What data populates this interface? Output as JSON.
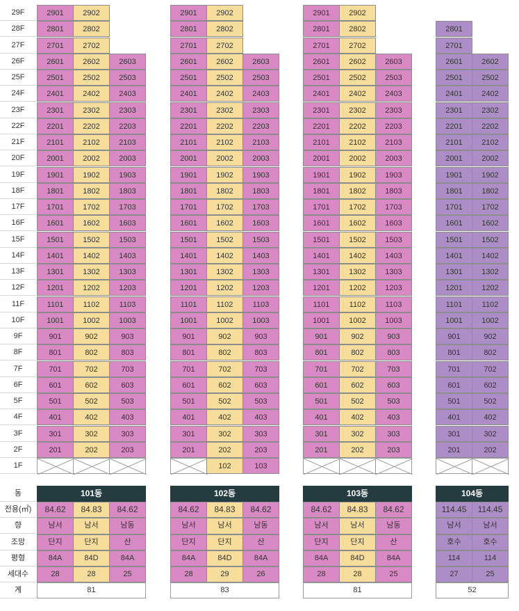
{
  "colors": {
    "pink": "#d98ac4",
    "yellow": "#f6dd9c",
    "purple": "#ad8dc6",
    "header": "#243b40"
  },
  "floors": [
    "29F",
    "28F",
    "27F",
    "26F",
    "25F",
    "24F",
    "23F",
    "22F",
    "21F",
    "20F",
    "19F",
    "18F",
    "17F",
    "16F",
    "15F",
    "14F",
    "13F",
    "12F",
    "11F",
    "10F",
    "9F",
    "8F",
    "7F",
    "6F",
    "5F",
    "4F",
    "3F",
    "2F",
    "1F"
  ],
  "row_labels": [
    "동",
    "전용(㎡)",
    "향",
    "조망",
    "평형",
    "세대수",
    "계"
  ],
  "buildings": [
    {
      "name": "101동",
      "total": "81",
      "lines": [
        {
          "color": "pink",
          "area": "84.62",
          "facing": "남서",
          "view": "단지",
          "type": "84A",
          "count": "28",
          "units": [
            "2901",
            "2801",
            "2701",
            "2601",
            "2501",
            "2401",
            "2301",
            "2201",
            "2101",
            "2001",
            "1901",
            "1801",
            "1701",
            "1601",
            "1501",
            "1401",
            "1301",
            "1201",
            "1101",
            "1001",
            "901",
            "801",
            "701",
            "601",
            "501",
            "401",
            "301",
            "201",
            ""
          ]
        },
        {
          "color": "yellow",
          "area": "84.83",
          "facing": "남서",
          "view": "단지",
          "type": "84D",
          "count": "28",
          "units": [
            "2902",
            "2802",
            "2702",
            "2602",
            "2502",
            "2402",
            "2302",
            "2202",
            "2102",
            "2002",
            "1902",
            "1802",
            "1702",
            "1602",
            "1502",
            "1402",
            "1302",
            "1202",
            "1102",
            "1002",
            "902",
            "802",
            "702",
            "602",
            "502",
            "402",
            "302",
            "202",
            ""
          ]
        },
        {
          "color": "pink",
          "area": "84.62",
          "facing": "남동",
          "view": "산",
          "type": "84A",
          "count": "25",
          "units": [
            null,
            null,
            null,
            "2603",
            "2503",
            "2403",
            "2303",
            "2203",
            "2103",
            "2003",
            "1903",
            "1803",
            "1703",
            "1603",
            "1503",
            "1403",
            "1303",
            "1203",
            "1103",
            "1003",
            "903",
            "803",
            "703",
            "603",
            "503",
            "403",
            "303",
            "203",
            ""
          ]
        }
      ]
    },
    {
      "name": "102동",
      "total": "83",
      "lines": [
        {
          "color": "pink",
          "area": "84.62",
          "facing": "남서",
          "view": "단지",
          "type": "84A",
          "count": "28",
          "units": [
            "2901",
            "2801",
            "2701",
            "2601",
            "2501",
            "2401",
            "2301",
            "2201",
            "2101",
            "2001",
            "1901",
            "1801",
            "1701",
            "1601",
            "1501",
            "1401",
            "1301",
            "1201",
            "1101",
            "1001",
            "901",
            "801",
            "701",
            "601",
            "501",
            "401",
            "301",
            "201",
            ""
          ]
        },
        {
          "color": "yellow",
          "area": "84.83",
          "facing": "남서",
          "view": "단지",
          "type": "84D",
          "count": "29",
          "units": [
            "2902",
            "2802",
            "2702",
            "2602",
            "2502",
            "2402",
            "2302",
            "2202",
            "2102",
            "2002",
            "1902",
            "1802",
            "1702",
            "1602",
            "1502",
            "1402",
            "1302",
            "1202",
            "1102",
            "1002",
            "902",
            "802",
            "702",
            "602",
            "502",
            "402",
            "302",
            "202",
            "102"
          ]
        },
        {
          "color": "pink",
          "area": "84.62",
          "facing": "남동",
          "view": "산",
          "type": "84A",
          "count": "26",
          "units": [
            null,
            null,
            null,
            "2603",
            "2503",
            "2403",
            "2303",
            "2203",
            "2103",
            "2003",
            "1903",
            "1803",
            "1703",
            "1603",
            "1503",
            "1403",
            "1303",
            "1203",
            "1103",
            "1003",
            "903",
            "803",
            "703",
            "603",
            "503",
            "403",
            "303",
            "203",
            "103"
          ]
        }
      ]
    },
    {
      "name": "103동",
      "total": "81",
      "lines": [
        {
          "color": "pink",
          "area": "84.62",
          "facing": "남서",
          "view": "단지",
          "type": "84A",
          "count": "28",
          "units": [
            "2901",
            "2801",
            "2701",
            "2601",
            "2501",
            "2401",
            "2301",
            "2201",
            "2101",
            "2001",
            "1901",
            "1801",
            "1701",
            "1601",
            "1501",
            "1401",
            "1301",
            "1201",
            "1101",
            "1001",
            "901",
            "801",
            "701",
            "601",
            "501",
            "401",
            "301",
            "201",
            ""
          ]
        },
        {
          "color": "yellow",
          "area": "84.83",
          "facing": "남서",
          "view": "단지",
          "type": "84D",
          "count": "28",
          "units": [
            "2902",
            "2802",
            "2702",
            "2602",
            "2502",
            "2402",
            "2302",
            "2202",
            "2102",
            "2002",
            "1902",
            "1802",
            "1702",
            "1602",
            "1502",
            "1402",
            "1302",
            "1202",
            "1102",
            "1002",
            "902",
            "802",
            "702",
            "602",
            "502",
            "402",
            "302",
            "202",
            ""
          ]
        },
        {
          "color": "pink",
          "area": "84.62",
          "facing": "남동",
          "view": "산",
          "type": "84A",
          "count": "25",
          "units": [
            null,
            null,
            null,
            "2603",
            "2503",
            "2403",
            "2303",
            "2203",
            "2103",
            "2003",
            "1903",
            "1803",
            "1703",
            "1603",
            "1503",
            "1403",
            "1303",
            "1203",
            "1103",
            "1003",
            "903",
            "803",
            "703",
            "603",
            "503",
            "403",
            "303",
            "203",
            ""
          ]
        }
      ]
    },
    {
      "name": "104동",
      "total": "52",
      "lines": [
        {
          "color": "purple",
          "area": "114.45",
          "facing": "남서",
          "view": "호수",
          "type": "114",
          "count": "27",
          "units": [
            null,
            "2801",
            "2701",
            "2601",
            "2501",
            "2401",
            "2301",
            "2201",
            "2101",
            "2001",
            "1901",
            "1801",
            "1701",
            "1601",
            "1501",
            "1401",
            "1301",
            "1201",
            "1101",
            "1001",
            "901",
            "801",
            "701",
            "601",
            "501",
            "401",
            "301",
            "201",
            ""
          ]
        },
        {
          "color": "purple",
          "area": "114.45",
          "facing": "남서",
          "view": "호수",
          "type": "114",
          "count": "25",
          "units": [
            null,
            null,
            null,
            "2602",
            "2502",
            "2402",
            "2302",
            "2202",
            "2102",
            "2002",
            "1902",
            "1802",
            "1702",
            "1602",
            "1502",
            "1402",
            "1302",
            "1202",
            "1102",
            "1002",
            "902",
            "802",
            "702",
            "602",
            "502",
            "402",
            "302",
            "202",
            ""
          ]
        }
      ]
    }
  ]
}
